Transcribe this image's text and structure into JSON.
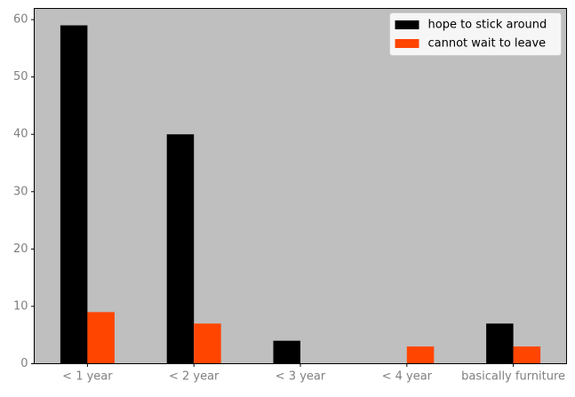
{
  "chart_data": {
    "type": "bar",
    "categories": [
      "< 1 year",
      "< 2 year",
      "< 3 year",
      "< 4 year",
      "basically furniture"
    ],
    "series": [
      {
        "name": "hope to stick around",
        "values": [
          59,
          40,
          4,
          0,
          7
        ],
        "color": "#000000"
      },
      {
        "name": "cannot wait to leave",
        "values": [
          9,
          7,
          0,
          3,
          3
        ],
        "color": "#ff4500"
      }
    ],
    "yticks": [
      0,
      10,
      20,
      30,
      40,
      50,
      60
    ],
    "ylim": [
      0,
      61.95
    ],
    "title": "",
    "xlabel": "",
    "ylabel": "",
    "grid": false,
    "legend_position": "top-right",
    "colors": {
      "plot_background": "#bfbfbf",
      "tick_label": "#808080",
      "axis_line": "#000000"
    }
  }
}
